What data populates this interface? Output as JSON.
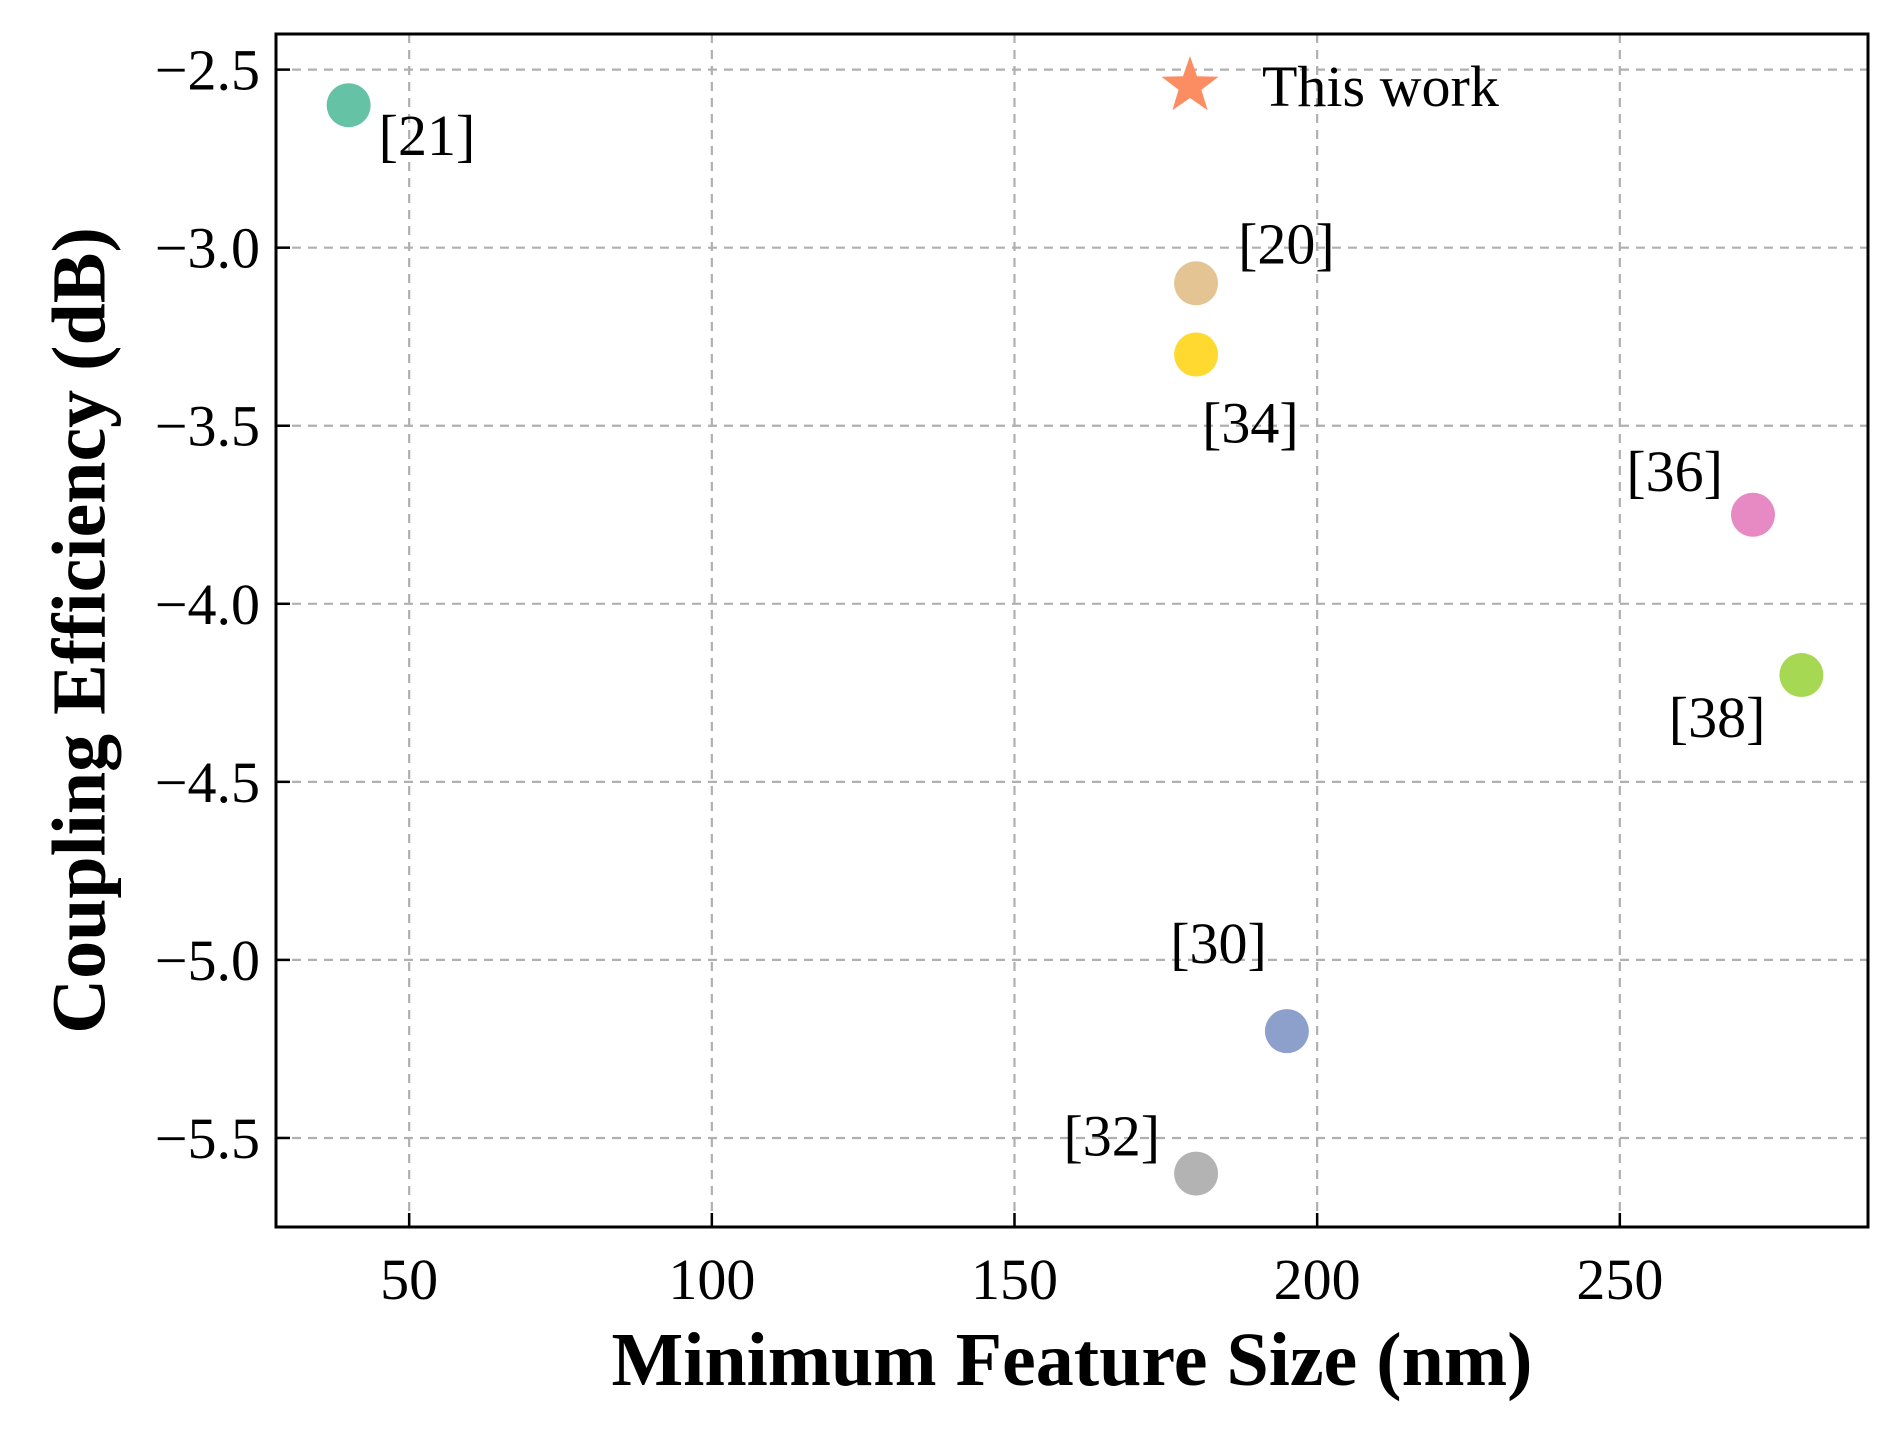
{
  "chart_data": {
    "type": "scatter",
    "title": "",
    "xlabel": "Minimum Feature Size (nm)",
    "ylabel": "Coupling Efficiency (dB)",
    "xlim": [
      28,
      291
    ],
    "ylim": [
      -5.75,
      -2.4
    ],
    "xticks": [
      50,
      100,
      150,
      200,
      250
    ],
    "xtick_labels": [
      "50",
      "100",
      "150",
      "200",
      "250"
    ],
    "yticks": [
      -2.5,
      -3.0,
      -3.5,
      -4.0,
      -4.5,
      -5.0,
      -5.5
    ],
    "ytick_labels": [
      "−2.5",
      "−3.0",
      "−3.5",
      "−4.0",
      "−4.5",
      "−5.0",
      "−5.5"
    ],
    "grid": true,
    "legend_position": "top-center",
    "legend": [
      {
        "label": "This work",
        "marker": "star",
        "color": "#fc8d62"
      }
    ],
    "points": [
      {
        "label": "[21]",
        "x": 40,
        "y": -2.6,
        "color": "#66c2a5",
        "label_side": "below-right"
      },
      {
        "label": "[20]",
        "x": 180,
        "y": -3.1,
        "color": "#e5c494",
        "label_side": "above-right"
      },
      {
        "label": "[34]",
        "x": 180,
        "y": -3.3,
        "color": "#ffd92f",
        "label_side": "below-right"
      },
      {
        "label": "[36]",
        "x": 272,
        "y": -3.75,
        "color": "#e78ac3",
        "label_side": "above-left"
      },
      {
        "label": "[38]",
        "x": 280,
        "y": -4.2,
        "color": "#a6d854",
        "label_side": "below-left"
      },
      {
        "label": "[30]",
        "x": 195,
        "y": -5.2,
        "color": "#8da0cb",
        "label_side": "above-left"
      },
      {
        "label": "[32]",
        "x": 180,
        "y": -5.6,
        "color": "#b3b3b3",
        "label_side": "above-left"
      }
    ]
  }
}
